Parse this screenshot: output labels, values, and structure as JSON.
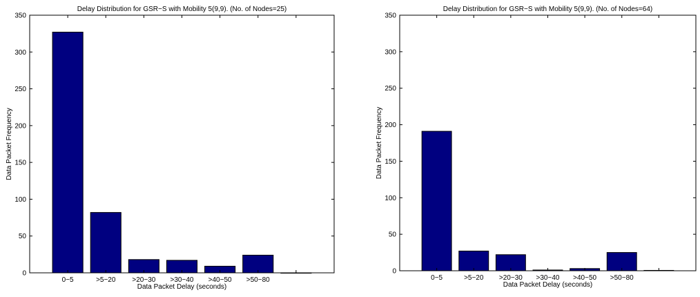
{
  "chart_data": [
    {
      "type": "bar",
      "title": "Delay Distribution for GSR−S with Mobility 5(9,9). (No. of Nodes=25)",
      "xlabel": "Data Packet Delay (seconds)",
      "ylabel": "Data Packet Frequency",
      "categories": [
        "0−5",
        ">5−20",
        ">20−30",
        ">30−40",
        ">40−50",
        ">50−80",
        ""
      ],
      "values": [
        327,
        82,
        18,
        17,
        9,
        24,
        0
      ],
      "ylim": [
        0,
        350
      ],
      "yticks": [
        0,
        50,
        100,
        150,
        200,
        250,
        300,
        350
      ],
      "xlim": [
        0,
        8
      ],
      "grid": false,
      "bar_color": "#000080"
    },
    {
      "type": "bar",
      "title": "Delay Distribution for GSR−S with Mobility 5(9,9). (No. of Nodes=64)",
      "xlabel": "Data Packet Delay (seconds)",
      "ylabel": "Data Packet Frequency",
      "categories": [
        "0−5",
        ">5−20",
        ">20−30",
        ">30−40",
        ">40−50",
        ">50−80",
        ""
      ],
      "values": [
        191,
        27,
        22,
        1,
        3,
        25,
        0.5
      ],
      "ylim": [
        0,
        350
      ],
      "yticks": [
        0,
        50,
        100,
        150,
        200,
        250,
        300,
        350
      ],
      "xlim": [
        0,
        8
      ],
      "grid": false,
      "bar_color": "#000080"
    }
  ]
}
